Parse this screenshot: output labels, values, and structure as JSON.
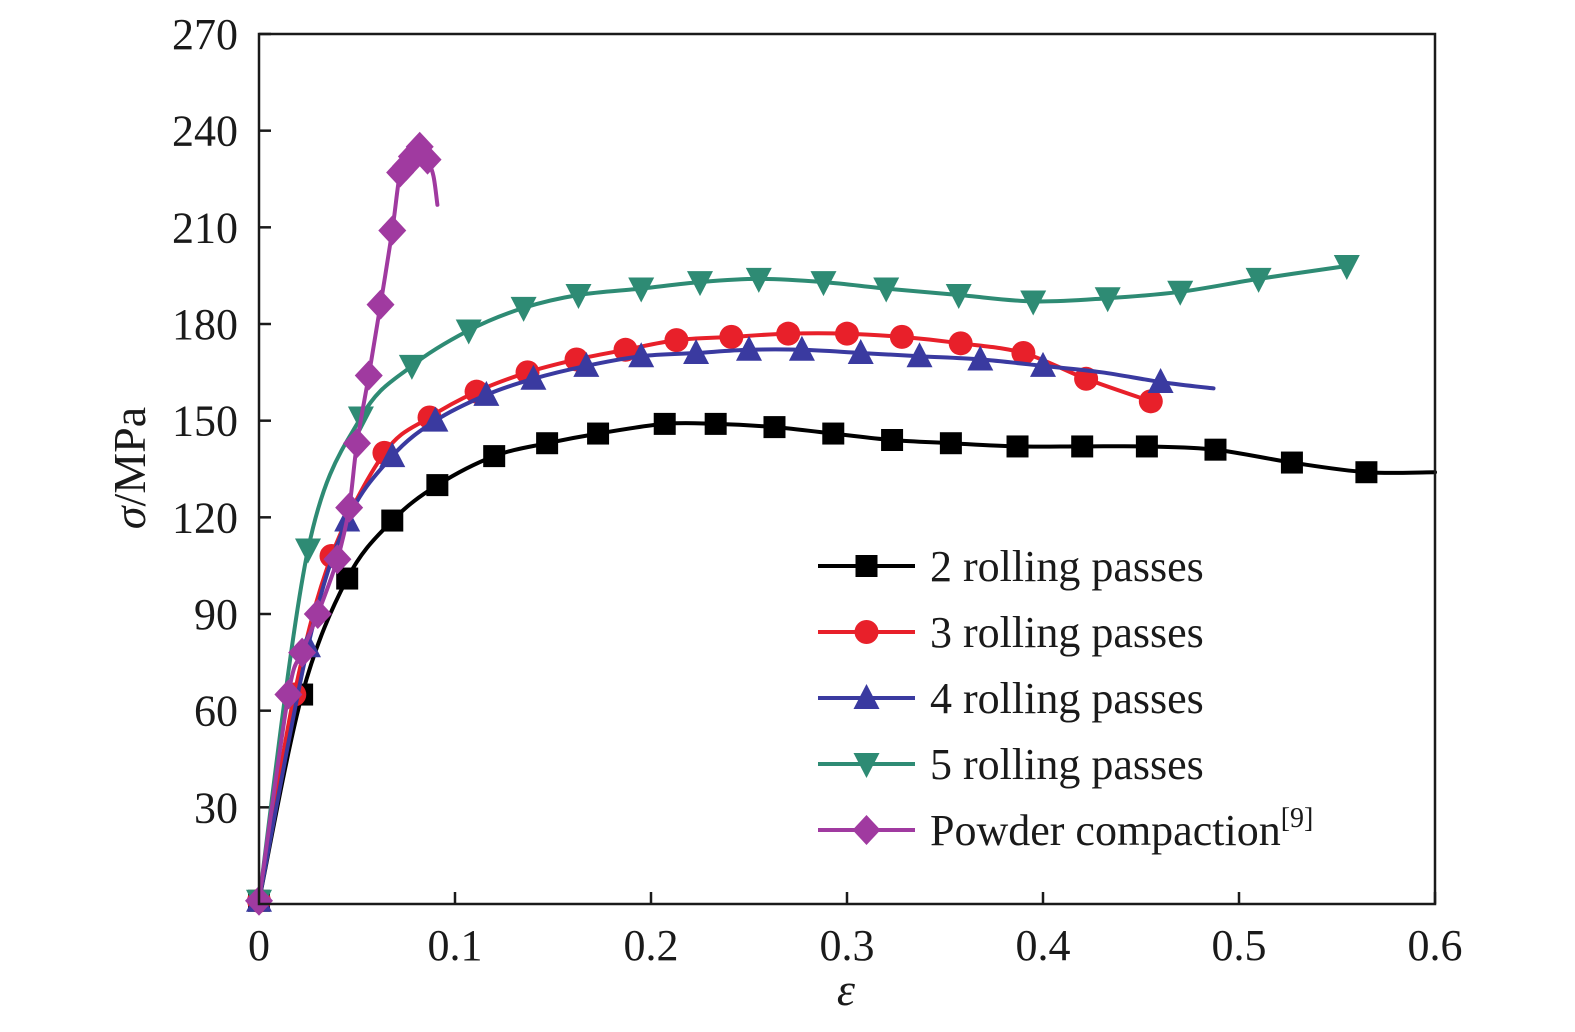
{
  "chart_data": {
    "type": "line",
    "xlabel": "ε",
    "ylabel_symbol": "σ",
    "ylabel_unit": "/MPa",
    "xlim": [
      0,
      0.6
    ],
    "ylim": [
      0,
      270
    ],
    "xticks": [
      "0",
      "0.1",
      "0.2",
      "0.3",
      "0.4",
      "0.5",
      "0.6"
    ],
    "yticks": [
      "30",
      "60",
      "90",
      "120",
      "150",
      "180",
      "210",
      "240",
      "270"
    ],
    "grid": false,
    "legend_position": "bottom-right",
    "series": [
      {
        "name": "2 rolling passes",
        "color": "#000000",
        "marker": "square",
        "x": [
          0.0,
          0.022,
          0.045,
          0.068,
          0.091,
          0.12,
          0.147,
          0.173,
          0.207,
          0.233,
          0.263,
          0.293,
          0.323,
          0.353,
          0.387,
          0.42,
          0.453,
          0.488,
          0.527,
          0.565
        ],
        "y": [
          1,
          65,
          101,
          119,
          130,
          139,
          143,
          146,
          149,
          149,
          148,
          146,
          144,
          143,
          142,
          142,
          142,
          141,
          137,
          134
        ],
        "line_x": [
          0.0,
          0.022,
          0.045,
          0.068,
          0.091,
          0.12,
          0.147,
          0.173,
          0.207,
          0.233,
          0.263,
          0.293,
          0.323,
          0.353,
          0.387,
          0.42,
          0.453,
          0.488,
          0.527,
          0.565,
          0.6
        ],
        "line_y": [
          1,
          65,
          101,
          119,
          130,
          139,
          143,
          146,
          149,
          149,
          148,
          146,
          144,
          143,
          142,
          142,
          142,
          141,
          137,
          134,
          134
        ]
      },
      {
        "name": "3 rolling passes",
        "color": "#e8202a",
        "marker": "circle",
        "x": [
          0.0,
          0.018,
          0.037,
          0.064,
          0.087,
          0.111,
          0.137,
          0.162,
          0.187,
          0.213,
          0.241,
          0.27,
          0.3,
          0.328,
          0.358,
          0.39,
          0.422,
          0.455
        ],
        "y": [
          1,
          65,
          108,
          140,
          151,
          159,
          165,
          169,
          172,
          175,
          176,
          177,
          177,
          176,
          174,
          171,
          163,
          156
        ],
        "line_x": [
          0.0,
          0.018,
          0.037,
          0.064,
          0.087,
          0.111,
          0.137,
          0.162,
          0.187,
          0.213,
          0.241,
          0.27,
          0.3,
          0.328,
          0.358,
          0.39,
          0.422,
          0.455
        ],
        "line_y": [
          1,
          65,
          108,
          140,
          151,
          159,
          165,
          169,
          172,
          175,
          176,
          177,
          177,
          176,
          174,
          171,
          163,
          156
        ]
      },
      {
        "name": "4 rolling passes",
        "color": "#3a3aa0",
        "marker": "triangle-up",
        "x": [
          0.0,
          0.025,
          0.045,
          0.068,
          0.09,
          0.116,
          0.14,
          0.167,
          0.195,
          0.223,
          0.25,
          0.277,
          0.307,
          0.337,
          0.368,
          0.4,
          0.46
        ],
        "y": [
          1,
          80,
          119,
          139,
          150,
          158,
          163,
          167,
          170,
          171,
          172,
          172,
          171,
          170,
          169,
          167,
          162
        ],
        "line_x": [
          0.0,
          0.025,
          0.045,
          0.068,
          0.09,
          0.116,
          0.14,
          0.167,
          0.195,
          0.223,
          0.25,
          0.277,
          0.307,
          0.337,
          0.368,
          0.4,
          0.43,
          0.46,
          0.487
        ],
        "line_y": [
          1,
          80,
          119,
          139,
          150,
          158,
          163,
          167,
          170,
          171,
          172,
          172,
          171,
          170,
          169,
          167,
          165,
          162,
          160
        ]
      },
      {
        "name": "5 rolling passes",
        "color": "#2e8b74",
        "marker": "triangle-down",
        "x": [
          0.0,
          0.025,
          0.052,
          0.078,
          0.107,
          0.135,
          0.163,
          0.195,
          0.225,
          0.255,
          0.288,
          0.32,
          0.357,
          0.395,
          0.433,
          0.47,
          0.51,
          0.555
        ],
        "y": [
          1,
          110,
          151,
          167,
          178,
          185,
          189,
          191,
          193,
          194,
          193,
          191,
          189,
          187,
          188,
          190,
          194,
          198
        ],
        "line_x": [
          0.0,
          0.025,
          0.052,
          0.078,
          0.107,
          0.135,
          0.163,
          0.195,
          0.225,
          0.255,
          0.288,
          0.32,
          0.357,
          0.395,
          0.433,
          0.47,
          0.51,
          0.555
        ],
        "line_y": [
          1,
          110,
          151,
          167,
          178,
          185,
          189,
          191,
          193,
          194,
          193,
          191,
          189,
          187,
          188,
          190,
          194,
          198
        ]
      },
      {
        "name": "Powder compaction",
        "name_sup": "[9]",
        "color": "#a03aa0",
        "marker": "diamond",
        "x": [
          0.0,
          0.015,
          0.022,
          0.03,
          0.04,
          0.046,
          0.05,
          0.056,
          0.062,
          0.068,
          0.072,
          0.075,
          0.078,
          0.082,
          0.086
        ],
        "y": [
          1,
          65,
          78,
          90,
          107,
          123,
          143,
          164,
          186,
          209,
          227,
          229,
          232,
          235,
          231
        ],
        "line_x": [
          0.0,
          0.015,
          0.022,
          0.03,
          0.04,
          0.046,
          0.05,
          0.056,
          0.062,
          0.068,
          0.072,
          0.075,
          0.078,
          0.082,
          0.086,
          0.089,
          0.091
        ],
        "line_y": [
          1,
          65,
          78,
          90,
          107,
          123,
          143,
          164,
          186,
          209,
          227,
          229,
          232,
          235,
          231,
          226,
          217
        ]
      }
    ]
  }
}
